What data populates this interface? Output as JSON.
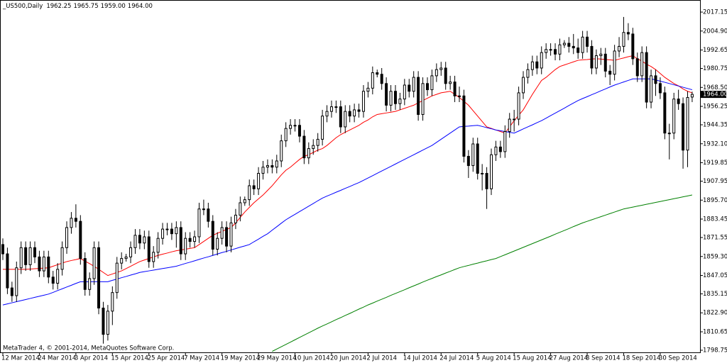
{
  "chart_data": {
    "type": "candlestick",
    "title": "_US500,Daily",
    "title_values": [
      "1962.25",
      "1965.75",
      "1959.00",
      "1964.00"
    ],
    "footer": "MetaTrader 4, © 2001-2014, MetaQuotes Software Corp.",
    "up_color": "#ffffff",
    "down_color": "#000000",
    "wick_color": "#000000",
    "categories": [
      "12 Mar 2014",
      null,
      null,
      null,
      null,
      null,
      null,
      null,
      "24 Mar 2014",
      null,
      null,
      null,
      null,
      null,
      null,
      null,
      "3 Apr 2014",
      null,
      null,
      null,
      null,
      null,
      null,
      null,
      "15 Apr 2014",
      null,
      null,
      null,
      null,
      null,
      null,
      null,
      "25 Apr 2014",
      null,
      null,
      null,
      null,
      null,
      null,
      null,
      "7 May 2014",
      null,
      null,
      null,
      null,
      null,
      null,
      null,
      "19 May 2014",
      null,
      null,
      null,
      null,
      null,
      null,
      null,
      "29 May 2014",
      null,
      null,
      null,
      null,
      null,
      null,
      null,
      "10 Jun 2014",
      null,
      null,
      null,
      null,
      null,
      null,
      null,
      "20 Jun 2014",
      null,
      null,
      null,
      null,
      null,
      null,
      null,
      "2 Jul 2014",
      null,
      null,
      null,
      null,
      null,
      null,
      null,
      "14 Jul 2014",
      null,
      null,
      null,
      null,
      null,
      null,
      null,
      "24 Jul 2014",
      null,
      null,
      null,
      null,
      null,
      null,
      null,
      "5 Aug 2014",
      null,
      null,
      null,
      null,
      null,
      null,
      null,
      "15 Aug 2014",
      null,
      null,
      null,
      null,
      null,
      null,
      null,
      "27 Aug 2014",
      null,
      null,
      null,
      null,
      null,
      null,
      null,
      "8 Sep 2014",
      null,
      null,
      null,
      null,
      null,
      null,
      null,
      "18 Sep 2014",
      null,
      null,
      null,
      null,
      null,
      null,
      null,
      "30 Sep 2014",
      null,
      null,
      null,
      null,
      null,
      null,
      null
    ],
    "open": [
      1867,
      1861,
      1839,
      1834,
      1852,
      1865,
      1854,
      1865,
      1859,
      1850,
      1859,
      1846,
      1842,
      1851,
      1865,
      1878,
      1884,
      1882,
      1858,
      1838,
      1845,
      1865,
      1826,
      1809,
      1824,
      1836,
      1855,
      1858,
      1859,
      1865,
      1873,
      1868,
      1872,
      1856,
      1862,
      1871,
      1877,
      1877,
      1874,
      1878,
      1861,
      1871,
      1869,
      1872,
      1890,
      1890,
      1882,
      1864,
      1871,
      1878,
      1866,
      1881,
      1886,
      1894,
      1896,
      1905,
      1903,
      1913,
      1917,
      1918,
      1917,
      1921,
      1934,
      1942,
      1944,
      1944,
      1937,
      1923,
      1929,
      1931,
      1935,
      1950,
      1953,
      1956,
      1956,
      1943,
      1953,
      1950,
      1954,
      1953,
      1966,
      1968,
      1978,
      1977,
      1971,
      1957,
      1966,
      1958,
      1961,
      1970,
      1966,
      1975,
      1951,
      1971,
      1967,
      1976,
      1980,
      1981,
      1971,
      1972,
      1963,
      1963,
      1924,
      1918,
      1932,
      1913,
      1913,
      1903,
      1925,
      1930,
      1927,
      1940,
      1948,
      1948,
      1965,
      1975,
      1980,
      1985,
      1981,
      1991,
      1993,
      1993,
      1990,
      1996,
      1997,
      1995,
      1994,
      1991,
      2001,
      1995,
      1981,
      1989,
      1990,
      1979,
      1977,
      1992,
      1995,
      2004,
      2003,
      1987,
      1976,
      1991,
      1959,
      1976,
      1971,
      1965,
      1939,
      1939,
      1961,
      1958,
      1928,
      1962.25
    ],
    "high": [
      1871,
      1865,
      1843,
      1856,
      1869,
      1869,
      1869,
      1869,
      1863,
      1863,
      1863,
      1850,
      1855,
      1869,
      1882,
      1888,
      1893,
      1886,
      1862,
      1849,
      1869,
      1869,
      1830,
      1828,
      1840,
      1859,
      1862,
      1861,
      1869,
      1877,
      1877,
      1876,
      1876,
      1866,
      1875,
      1881,
      1881,
      1881,
      1882,
      1882,
      1875,
      1875,
      1876,
      1894,
      1896,
      1894,
      1886,
      1875,
      1882,
      1882,
      1885,
      1890,
      1898,
      1898,
      1909,
      1909,
      1917,
      1921,
      1922,
      1922,
      1925,
      1938,
      1946,
      1948,
      1948,
      1948,
      1941,
      1933,
      1935,
      1939,
      1954,
      1957,
      1960,
      1960,
      1960,
      1957,
      1957,
      1958,
      1958,
      1970,
      1972,
      1982,
      1980,
      1981,
      1975,
      1970,
      1970,
      1965,
      1974,
      1974,
      1979,
      1979,
      1975,
      1975,
      1980,
      1984,
      1985,
      1985,
      1976,
      1976,
      1969,
      1967,
      1928,
      1936,
      1936,
      1919,
      1917,
      1929,
      1934,
      1934,
      1944,
      1952,
      1954,
      1969,
      1979,
      1984,
      1989,
      1989,
      1995,
      1997,
      1997,
      1997,
      2000,
      1999,
      2001,
      2003,
      2000,
      2005,
      2005,
      1999,
      1993,
      1994,
      1994,
      1983,
      1996,
      2001,
      2014,
      2010,
      2007,
      1991,
      1995,
      1995,
      1980,
      1980,
      1975,
      1969,
      1945,
      1965,
      1967,
      1962,
      1966,
      1965.75
    ],
    "low": [
      1857,
      1835,
      1830,
      1830,
      1848,
      1850,
      1850,
      1855,
      1846,
      1846,
      1842,
      1838,
      1838,
      1847,
      1861,
      1874,
      1878,
      1854,
      1834,
      1834,
      1841,
      1822,
      1803,
      1805,
      1815,
      1832,
      1851,
      1856,
      1855,
      1861,
      1864,
      1864,
      1852,
      1852,
      1858,
      1867,
      1873,
      1870,
      1865,
      1857,
      1857,
      1865,
      1865,
      1868,
      1886,
      1878,
      1860,
      1860,
      1867,
      1862,
      1862,
      1877,
      1882,
      1892,
      1892,
      1899,
      1899,
      1909,
      1913,
      1913,
      1913,
      1917,
      1930,
      1938,
      1940,
      1933,
      1919,
      1919,
      1925,
      1927,
      1931,
      1946,
      1949,
      1952,
      1939,
      1939,
      1946,
      1946,
      1949,
      1949,
      1962,
      1964,
      1975,
      1967,
      1953,
      1953,
      1954,
      1954,
      1957,
      1962,
      1962,
      1947,
      1947,
      1963,
      1963,
      1972,
      1976,
      1967,
      1967,
      1959,
      1959,
      1920,
      1910,
      1914,
      1909,
      1902,
      1890,
      1899,
      1921,
      1923,
      1923,
      1936,
      1940,
      1944,
      1961,
      1971,
      1976,
      1977,
      1977,
      1987,
      1989,
      1986,
      1986,
      1994,
      1991,
      1990,
      1987,
      1987,
      1991,
      1977,
      1977,
      1983,
      1975,
      1970,
      1973,
      1988,
      1991,
      1999,
      1983,
      1972,
      1972,
      1955,
      1955,
      1963,
      1961,
      1935,
      1922,
      1935,
      1954,
      1916,
      1917,
      1959
    ],
    "close": [
      1861,
      1839,
      1834,
      1852,
      1865,
      1854,
      1865,
      1859,
      1850,
      1859,
      1846,
      1842,
      1851,
      1865,
      1878,
      1884,
      1882,
      1858,
      1838,
      1845,
      1865,
      1826,
      1809,
      1824,
      1836,
      1855,
      1858,
      1859,
      1865,
      1873,
      1868,
      1872,
      1856,
      1862,
      1871,
      1877,
      1877,
      1874,
      1878,
      1861,
      1871,
      1869,
      1872,
      1890,
      1890,
      1882,
      1864,
      1871,
      1878,
      1866,
      1881,
      1886,
      1894,
      1896,
      1905,
      1903,
      1913,
      1917,
      1918,
      1917,
      1921,
      1934,
      1942,
      1944,
      1944,
      1937,
      1923,
      1929,
      1931,
      1935,
      1950,
      1953,
      1956,
      1956,
      1943,
      1953,
      1950,
      1954,
      1953,
      1966,
      1968,
      1978,
      1977,
      1971,
      1957,
      1966,
      1958,
      1961,
      1970,
      1966,
      1975,
      1951,
      1971,
      1967,
      1976,
      1980,
      1981,
      1971,
      1972,
      1963,
      1963,
      1924,
      1918,
      1932,
      1913,
      1913,
      1903,
      1925,
      1930,
      1927,
      1940,
      1948,
      1948,
      1965,
      1975,
      1980,
      1985,
      1981,
      1991,
      1993,
      1993,
      1990,
      1996,
      1997,
      1995,
      1994,
      1991,
      2001,
      1995,
      1981,
      1989,
      1990,
      1979,
      1977,
      1992,
      1995,
      2004,
      2003,
      1987,
      1976,
      1991,
      1959,
      1976,
      1971,
      1965,
      1939,
      1939,
      1961,
      1958,
      1928,
      1962,
      1964
    ],
    "series": [
      {
        "color": "#ff0000",
        "values": [
          1851,
          1851,
          1851,
          1851,
          1851,
          1851,
          1851.2,
          1851.4,
          1851.6,
          1851.8,
          1852,
          1853,
          1854,
          1855,
          1856,
          1856.7,
          1857.3,
          1858,
          1856.3,
          1854.7,
          1853,
          1851,
          1849,
          1847,
          1848,
          1849,
          1850,
          1851.5,
          1853,
          1854.5,
          1856,
          1857,
          1858,
          1859,
          1860,
          1860.8,
          1861.5,
          1862.3,
          1863,
          1863.5,
          1864,
          1864.5,
          1865,
          1867,
          1869,
          1871,
          1873,
          1874.3,
          1875.5,
          1876.8,
          1878,
          1881,
          1884.5,
          1888,
          1891,
          1894,
          1896.5,
          1899,
          1902,
          1905,
          1908.5,
          1912,
          1915,
          1917,
          1919.5,
          1922,
          1924,
          1925,
          1926.5,
          1928,
          1929,
          1931,
          1933.5,
          1936,
          1938,
          1939.5,
          1941,
          1942.5,
          1944,
          1946,
          1947.5,
          1949.5,
          1951,
          1951.5,
          1952,
          1952.5,
          1953,
          1954,
          1955,
          1956,
          1957,
          1958.5,
          1960,
          1961.5,
          1963,
          1964,
          1965,
          1965.5,
          1966,
          1964,
          1962,
          1959.5,
          1957,
          1953.5,
          1950,
          1946.5,
          1943,
          1942,
          1941,
          1940,
          1939,
          1943,
          1947,
          1950.5,
          1954,
          1959,
          1964,
          1968.5,
          1973,
          1975,
          1977.5,
          1980,
          1982,
          1983,
          1984,
          1985,
          1986,
          1986.3,
          1986.5,
          1986.8,
          1987,
          1986.8,
          1986.5,
          1986.3,
          1986,
          1986.8,
          1987.5,
          1988.3,
          1989,
          1987,
          1985.5,
          1983.5,
          1982,
          1980,
          1977.5,
          1975,
          1973,
          1971,
          1969.5,
          1967.5,
          1966,
          1965
        ]
      },
      {
        "color": "#0000ff",
        "values": [
          1828,
          1828.7,
          1829.4,
          1830.1,
          1830.8,
          1831.5,
          1832.2,
          1832.9,
          1833.6,
          1834.3,
          1835,
          1836.1,
          1837.3,
          1838.4,
          1839.6,
          1840.7,
          1841.9,
          1843,
          1843,
          1843,
          1843,
          1843,
          1843,
          1843,
          1843.9,
          1844.7,
          1845.6,
          1846.4,
          1847.3,
          1848.1,
          1849,
          1849.5,
          1850,
          1850.5,
          1851,
          1851.5,
          1852,
          1852.5,
          1853,
          1853.9,
          1854.8,
          1855.6,
          1856.5,
          1857.4,
          1858.3,
          1859.1,
          1860,
          1860.9,
          1861.8,
          1862.6,
          1863.5,
          1864.4,
          1865.3,
          1866.1,
          1867,
          1868.8,
          1870.5,
          1872.3,
          1874,
          1876.3,
          1878.5,
          1880.8,
          1883,
          1884.8,
          1886.5,
          1888.3,
          1890,
          1891.8,
          1893.5,
          1895.3,
          1897,
          1898.3,
          1899.5,
          1900.8,
          1902,
          1903.3,
          1904.5,
          1905.8,
          1907,
          1908.5,
          1910,
          1911.5,
          1913,
          1914.5,
          1916,
          1917.5,
          1919,
          1920.5,
          1922,
          1923.5,
          1925,
          1926.5,
          1928,
          1929.5,
          1931,
          1933,
          1935,
          1937,
          1939,
          1941,
          1943,
          1943.3,
          1943.5,
          1943.8,
          1944,
          1943.3,
          1942.5,
          1941.8,
          1941,
          1940.5,
          1940,
          1939.5,
          1939,
          1940.3,
          1941.7,
          1943,
          1944.3,
          1945.7,
          1947,
          1948.6,
          1950.3,
          1951.9,
          1953.5,
          1955.1,
          1956.8,
          1958.4,
          1960,
          1961.3,
          1962.5,
          1963.8,
          1965,
          1966.3,
          1967.5,
          1968.8,
          1970,
          1971,
          1972,
          1973,
          1974,
          1974,
          1974,
          1974,
          1974,
          1973.3,
          1972.5,
          1971.8,
          1971,
          1970.2,
          1969.4,
          1968.6,
          1967.8,
          1967
        ]
      },
      {
        "color": "#008000",
        "values": [
          null,
          null,
          null,
          null,
          null,
          null,
          null,
          null,
          null,
          null,
          null,
          null,
          null,
          null,
          null,
          null,
          null,
          null,
          null,
          null,
          null,
          null,
          null,
          null,
          null,
          null,
          null,
          null,
          null,
          null,
          null,
          null,
          null,
          null,
          null,
          null,
          null,
          null,
          null,
          null,
          null,
          null,
          null,
          null,
          null,
          null,
          null,
          null,
          null,
          null,
          null,
          null,
          null,
          null,
          null,
          null,
          null,
          null,
          null,
          1798,
          1799.5,
          1801,
          1802.5,
          1804,
          1805.5,
          1807,
          1808.5,
          1810,
          1811.5,
          1813,
          1814.4,
          1815.7,
          1817.1,
          1818.5,
          1819.8,
          1821.2,
          1822.5,
          1823.9,
          1825.3,
          1826.6,
          1828,
          1829.2,
          1830.5,
          1831.7,
          1832.9,
          1834.2,
          1835.4,
          1836.6,
          1837.8,
          1839.1,
          1840.3,
          1841.5,
          1842.8,
          1844,
          1845.1,
          1846.3,
          1847.4,
          1848.6,
          1849.7,
          1850.9,
          1852,
          1852.8,
          1853.5,
          1854.3,
          1855,
          1855.8,
          1856.5,
          1857.3,
          1858,
          1859.2,
          1860.4,
          1861.6,
          1862.8,
          1864,
          1865.2,
          1866.4,
          1867.6,
          1868.8,
          1870,
          1871.2,
          1872.4,
          1873.7,
          1874.9,
          1876.1,
          1877.3,
          1878.6,
          1879.8,
          1881,
          1882,
          1883,
          1884,
          1885,
          1886,
          1887,
          1888,
          1889,
          1890,
          1890.6,
          1891.2,
          1891.8,
          1892.4,
          1893,
          1893.6,
          1894.2,
          1894.8,
          1895.4,
          1896,
          1896.6,
          1897.2,
          1897.8,
          1898.4,
          1899
        ]
      }
    ],
    "ylim": [
      1797.37,
      2024.49
    ],
    "yticks": [
      2017.15,
      {
        "value": 2004.9,
        "label": "2004.90"
      },
      1992.65,
      1980.75,
      {
        "value": 1968.5,
        "label": "1968.50"
      },
      1956.25,
      1944.35,
      {
        "value": 1932.1,
        "label": "1932.10"
      },
      1919.85,
      1907.95,
      {
        "value": 1895.7,
        "label": "1895.70"
      },
      1883.45,
      1871.55,
      {
        "value": 1859.3,
        "label": "1859.30"
      },
      1847.05,
      1835.15,
      {
        "value": 1822.9,
        "label": "1822.90"
      },
      1810.65,
      1798.75
    ],
    "last_price": {
      "value": 1964,
      "label": "1964.00"
    }
  }
}
